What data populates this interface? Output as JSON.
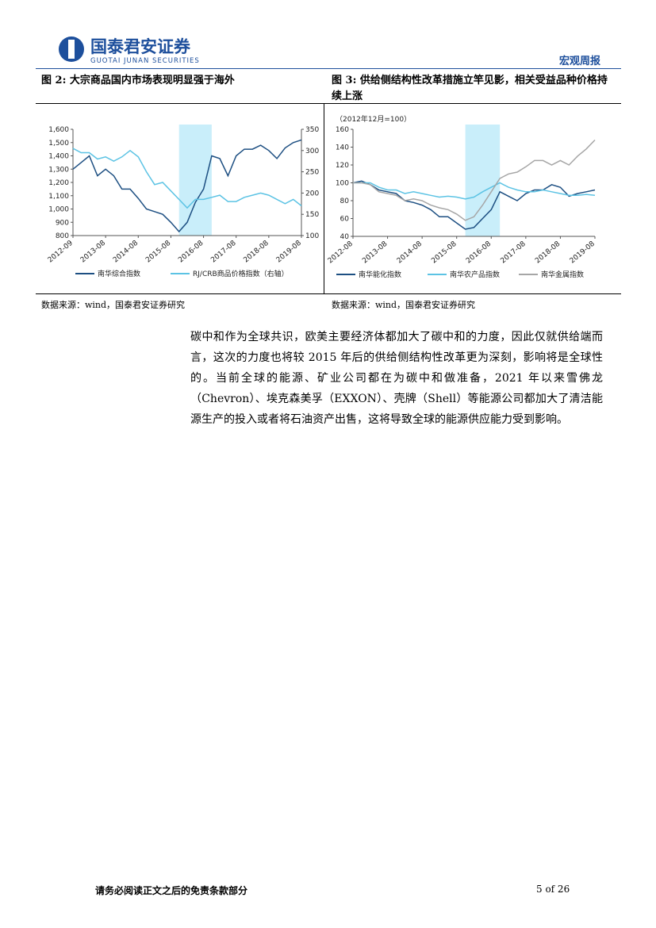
{
  "header": {
    "company": "国泰君安证券",
    "company_en": "GUOTAI JUNAN SECURITIES",
    "report_type": "宏观周报"
  },
  "figures": [
    {
      "caption": "图 2: 大宗商品国内市场表现明显强于海外",
      "source": "数据来源：wind，国泰君安证券研究"
    },
    {
      "caption": "图 3: 供给侧结构性改革措施立竿见影，相关受益品种价格持续上涨",
      "source": "数据来源：wind，国泰君安证券研究"
    }
  ],
  "chart_data": [
    {
      "type": "line",
      "x": [
        "2012-08",
        "2012-11",
        "2013-02",
        "2013-05",
        "2013-08",
        "2013-11",
        "2014-02",
        "2014-05",
        "2014-08",
        "2014-11",
        "2015-02",
        "2015-05",
        "2015-08",
        "2015-11",
        "2016-02",
        "2016-05",
        "2016-08",
        "2016-11",
        "2017-02",
        "2017-05",
        "2017-08",
        "2017-11",
        "2018-02",
        "2018-05",
        "2018-08",
        "2018-11",
        "2019-02",
        "2019-05",
        "2019-08"
      ],
      "xticks": [
        "2012-09",
        "2013-08",
        "2014-08",
        "2015-08",
        "2016-08",
        "2017-08",
        "2018-08",
        "2019-08"
      ],
      "highlight": {
        "from": "2015-11",
        "to": "2016-11",
        "color": "#c9eefa"
      },
      "ylim": [
        800,
        1600
      ],
      "yticks": [
        800,
        900,
        {
          "value": 1000,
          "label": "1,000"
        },
        {
          "value": 1100,
          "label": "1,100"
        },
        {
          "value": 1200,
          "label": "1,200"
        },
        {
          "value": 1300,
          "label": "1,300"
        },
        {
          "value": 1400,
          "label": "1,400"
        },
        {
          "value": 1500,
          "label": "1,500"
        },
        {
          "value": 1600,
          "label": "1,600"
        }
      ],
      "y2lim": [
        100,
        350
      ],
      "y2ticks": [
        100,
        150,
        200,
        250,
        300,
        350
      ],
      "series": [
        {
          "name": "南华综合指数",
          "color": "#1d4f82",
          "values": [
            1300,
            1350,
            1400,
            1250,
            1300,
            1250,
            1150,
            1150,
            1080,
            1000,
            980,
            960,
            900,
            830,
            900,
            1050,
            1150,
            1400,
            1380,
            1250,
            1400,
            1450,
            1450,
            1480,
            1440,
            1380,
            1460,
            1500,
            1520
          ]
        },
        {
          "name": "RJ/CRB商品价格指数（右轴）",
          "color": "#5cc3e4",
          "axis": "y2",
          "values": [
            305,
            295,
            295,
            280,
            285,
            275,
            285,
            300,
            285,
            250,
            220,
            225,
            205,
            185,
            165,
            185,
            185,
            190,
            195,
            180,
            180,
            190,
            195,
            200,
            195,
            185,
            175,
            185,
            170
          ]
        }
      ]
    },
    {
      "type": "line",
      "annotation": "（2012年12月=100）",
      "x": [
        "2012-08",
        "2012-11",
        "2013-02",
        "2013-05",
        "2013-08",
        "2013-11",
        "2014-02",
        "2014-05",
        "2014-08",
        "2014-11",
        "2015-02",
        "2015-05",
        "2015-08",
        "2015-11",
        "2016-02",
        "2016-05",
        "2016-08",
        "2016-11",
        "2017-02",
        "2017-05",
        "2017-08",
        "2017-11",
        "2018-02",
        "2018-05",
        "2018-08",
        "2018-11",
        "2019-02",
        "2019-05",
        "2019-08"
      ],
      "xticks": [
        "2012-08",
        "2013-08",
        "2014-08",
        "2015-08",
        "2016-08",
        "2017-08",
        "2018-08",
        "2019-08"
      ],
      "highlight": {
        "from": "2015-11",
        "to": "2016-11",
        "color": "#c9eefa"
      },
      "ylim": [
        40,
        160
      ],
      "yticks": [
        40,
        60,
        80,
        100,
        120,
        140,
        160
      ],
      "series": [
        {
          "name": "南华能化指数",
          "color": "#1d4f82",
          "values": [
            100,
            102,
            98,
            92,
            90,
            88,
            80,
            78,
            75,
            70,
            62,
            62,
            55,
            48,
            50,
            60,
            70,
            90,
            85,
            80,
            88,
            92,
            92,
            98,
            95,
            85,
            88,
            90,
            92
          ]
        },
        {
          "name": "南华农产品指数",
          "color": "#5cc3e4",
          "values": [
            100,
            100,
            100,
            95,
            92,
            92,
            88,
            90,
            88,
            86,
            84,
            85,
            84,
            82,
            84,
            90,
            95,
            100,
            95,
            92,
            90,
            90,
            92,
            90,
            88,
            86,
            86,
            87,
            86
          ]
        },
        {
          "name": "南华金属指数",
          "color": "#a6a6a6",
          "values": [
            100,
            100,
            98,
            90,
            88,
            86,
            80,
            82,
            80,
            75,
            72,
            70,
            65,
            58,
            62,
            75,
            90,
            105,
            110,
            112,
            118,
            125,
            125,
            120,
            125,
            120,
            130,
            138,
            148
          ]
        }
      ]
    }
  ],
  "body": {
    "paragraph": "碳中和作为全球共识，欧美主要经济体都加大了碳中和的力度，因此仅就供给端而言，这次的力度也将较 2015 年后的供给侧结构性改革更为深刻，影响将是全球性的。当前全球的能源、矿业公司都在为碳中和做准备，2021 年以来雪佛龙（Chevron）、埃克森美孚（EXXON）、壳牌（Shell）等能源公司都加大了清洁能源生产的投入或者将石油资产出售，这将导致全球的能源供应能力受到影响。"
  },
  "footer": {
    "disclaimer": "请务必阅读正文之后的免责条款部分",
    "page": "5 of 26"
  }
}
